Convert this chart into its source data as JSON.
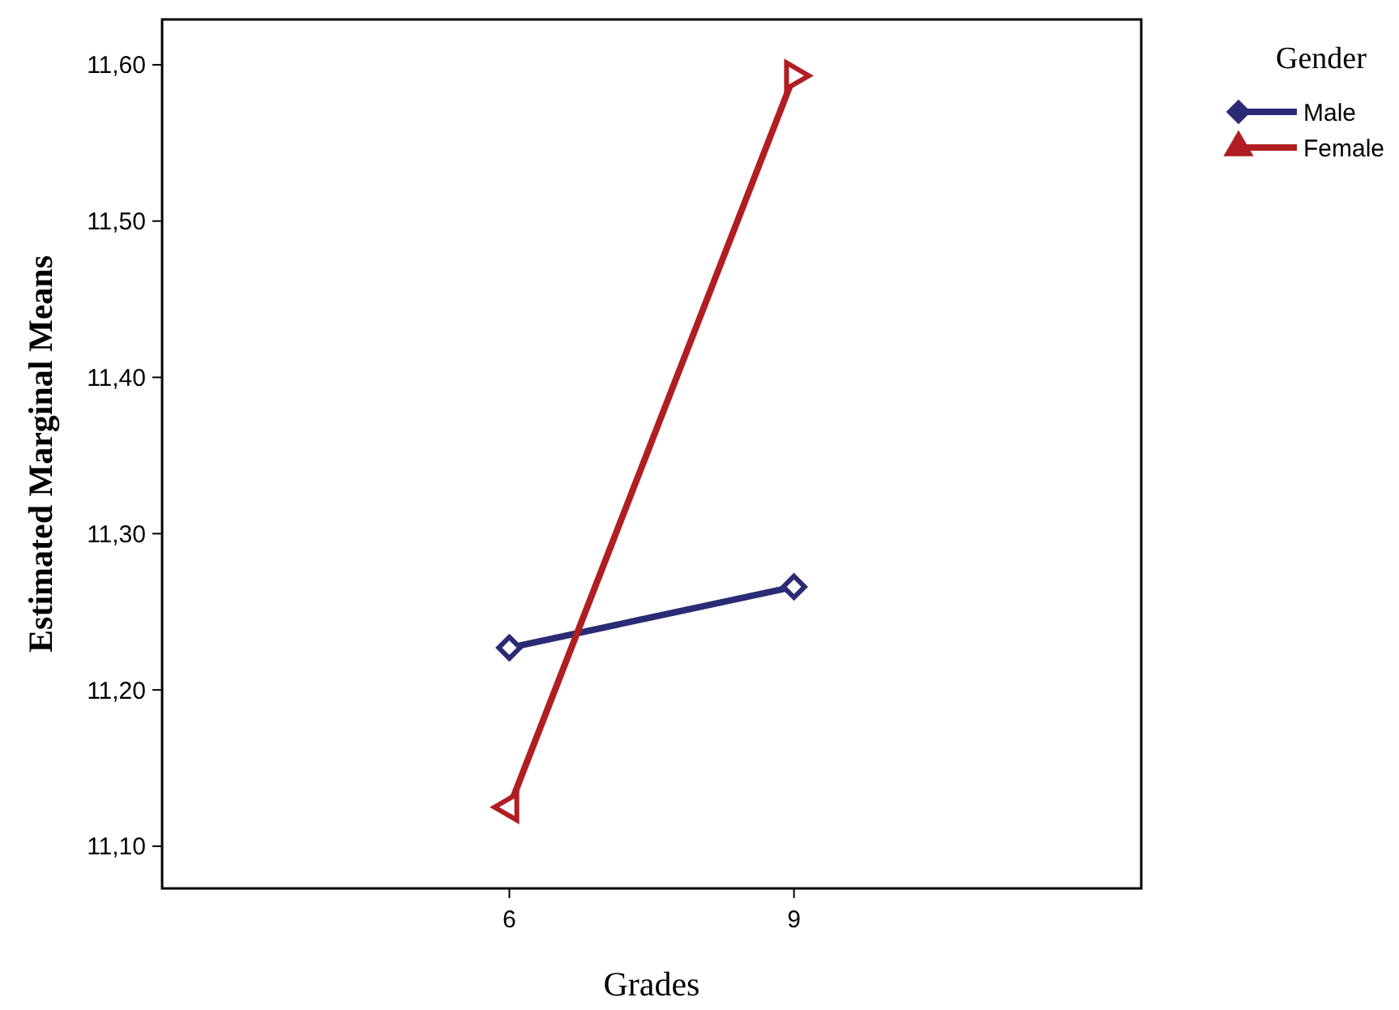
{
  "chart_data": {
    "type": "line",
    "xlabel": "Grades",
    "ylabel": "Estimated Marginal Means",
    "legend_title": "Gender",
    "legend": "top right",
    "grid": false,
    "categories": [
      "6",
      "9"
    ],
    "ylim": [
      11.073,
      11.629
    ],
    "yticks": [
      {
        "value": 11.1,
        "label": "11,10"
      },
      {
        "value": 11.2,
        "label": "11,20"
      },
      {
        "value": 11.3,
        "label": "11,30"
      },
      {
        "value": 11.4,
        "label": "11,40"
      },
      {
        "value": 11.5,
        "label": "11,50"
      },
      {
        "value": 11.6,
        "label": "11,60"
      }
    ],
    "series": [
      {
        "name": "Male",
        "color": "#2b2a75",
        "marker": "diamond",
        "values": [
          11.227,
          11.266
        ]
      },
      {
        "name": "Female",
        "color": "#b01e22",
        "marker": "triangle",
        "values": [
          11.125,
          11.593
        ]
      }
    ]
  }
}
